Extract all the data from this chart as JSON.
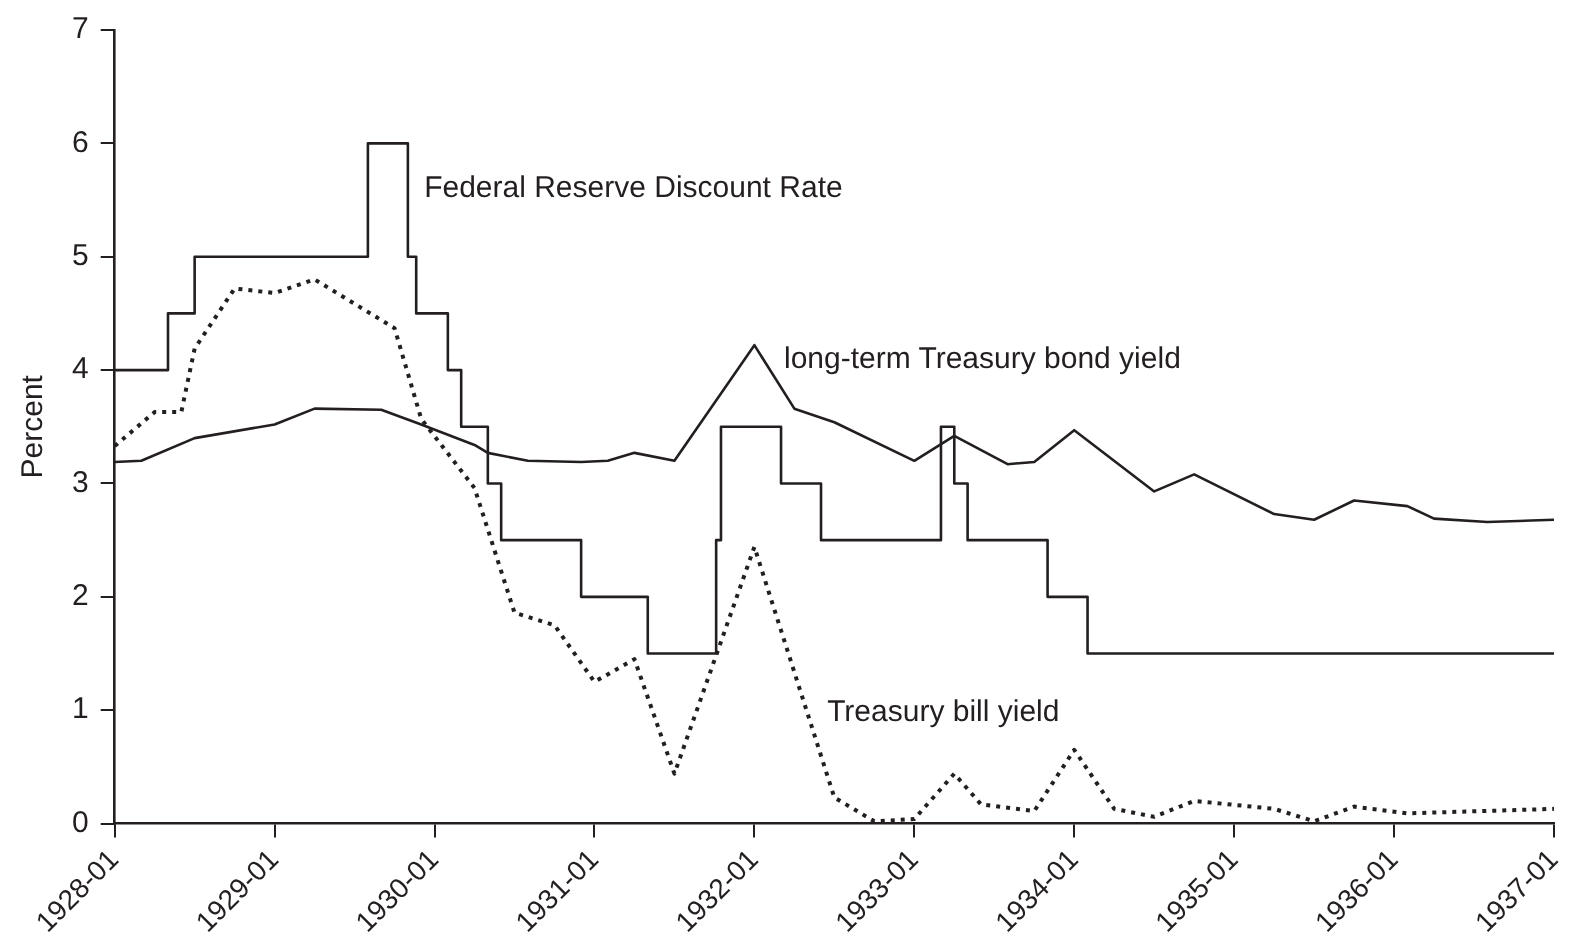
{
  "chart_data": {
    "type": "line",
    "ylabel": "Percent",
    "xlim": [
      "1928-01",
      "1937-01"
    ],
    "xticks": [
      "1928-01",
      "1929-01",
      "1930-01",
      "1931-01",
      "1932-01",
      "1933-01",
      "1934-01",
      "1935-01",
      "1936-01",
      "1937-01"
    ],
    "ylim": [
      0,
      7
    ],
    "yticks": [
      0,
      1,
      2,
      3,
      4,
      5,
      6,
      7
    ],
    "grid": false,
    "legend": false,
    "marker": "none",
    "series": [
      {
        "name": "Federal Reserve Discount Rate",
        "type": "step",
        "color": "#231f20",
        "line_style": "solid",
        "x": [
          "1928-01",
          "1928-05",
          "1928-07",
          "1929-08",
          "1929-11-01",
          "1929-11-20",
          "1930-02",
          "1930-03",
          "1930-05",
          "1930-06",
          "1930-12",
          "1931-05",
          "1931-10-05",
          "1931-10-16",
          "1932-03",
          "1932-06",
          "1933-03",
          "1933-04",
          "1933-05",
          "1933-11",
          "1934-02",
          "1937-01"
        ],
        "values": [
          4,
          4.5,
          5,
          6,
          5,
          4.5,
          4,
          3.5,
          3,
          2.5,
          2,
          1.5,
          2.5,
          3.5,
          3,
          2.5,
          3.5,
          3,
          2.5,
          2,
          1.5,
          1.5
        ]
      },
      {
        "name": "long-term Treasury bond yield",
        "type": "line",
        "color": "#231f20",
        "line_style": "solid",
        "x": [
          "1928-01",
          "1928-03",
          "1928-07",
          "1929-01",
          "1929-04",
          "1929-09",
          "1929-12",
          "1930-04",
          "1930-05",
          "1930-08",
          "1930-12",
          "1931-02",
          "1931-04",
          "1931-07",
          "1932-01",
          "1932-04",
          "1932-07",
          "1933-01",
          "1933-04",
          "1933-08",
          "1933-10",
          "1934-01",
          "1934-07",
          "1934-10",
          "1935-04",
          "1935-07",
          "1935-10",
          "1936-02",
          "1936-04",
          "1936-08",
          "1937-01"
        ],
        "values": [
          3.19,
          3.2,
          3.4,
          3.52,
          3.66,
          3.65,
          3.52,
          3.34,
          3.27,
          3.2,
          3.19,
          3.2,
          3.27,
          3.2,
          4.22,
          3.66,
          3.54,
          3.2,
          3.42,
          3.17,
          3.19,
          3.47,
          2.93,
          3.08,
          2.73,
          2.68,
          2.85,
          2.8,
          2.69,
          2.66,
          2.68
        ]
      },
      {
        "name": "Treasury bill yield",
        "type": "line",
        "color": "#231f20",
        "line_style": "dotted",
        "x": [
          "1928-01",
          "1928-04",
          "1928-06",
          "1928-07",
          "1928-10",
          "1929-01",
          "1929-04",
          "1929-10",
          "1929-12",
          "1930-04",
          "1930-07",
          "1930-10",
          "1931-01",
          "1931-04",
          "1931-07",
          "1932-01",
          "1932-07",
          "1932-10",
          "1933-01",
          "1933-04",
          "1933-06",
          "1933-10",
          "1934-01",
          "1934-04",
          "1934-07",
          "1934-10",
          "1935-04",
          "1935-07",
          "1935-10",
          "1936-02",
          "1937-01"
        ],
        "values": [
          3.33,
          3.63,
          3.63,
          4.19,
          4.72,
          4.68,
          4.8,
          4.37,
          3.57,
          2.96,
          1.86,
          1.75,
          1.25,
          1.45,
          0.44,
          2.44,
          0.23,
          0.02,
          0.04,
          0.44,
          0.17,
          0.11,
          0.65,
          0.13,
          0.06,
          0.2,
          0.13,
          0.02,
          0.15,
          0.09,
          0.13
        ]
      }
    ]
  }
}
